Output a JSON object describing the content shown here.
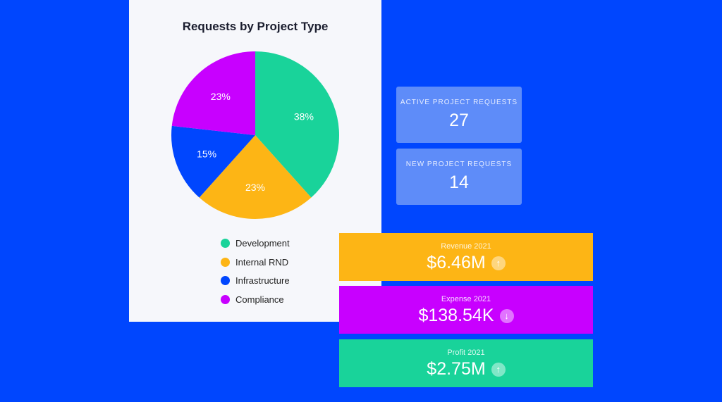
{
  "chart_data": {
    "type": "pie",
    "title": "Requests by Project Type",
    "categories": [
      "Development",
      "Internal RND",
      "Infrastructure",
      "Compliance"
    ],
    "values": [
      38,
      23,
      15,
      23
    ],
    "labels": [
      "38%",
      "23%",
      "15%",
      "23%"
    ],
    "colors": [
      "#19D39A",
      "#FDB515",
      "#0046FE",
      "#C800FF"
    ],
    "legend": "bottom"
  },
  "cards": [
    {
      "label": "ACTIVE PROJECT REQUESTS",
      "value": "27"
    },
    {
      "label": "NEW PROJECT REQUESTS",
      "value": "14"
    }
  ],
  "kpis": [
    {
      "label": "Revenue 2021",
      "value": "$6.46M",
      "trend": "up",
      "arrow": "↑",
      "color": "#FDB515"
    },
    {
      "label": "Expense 2021",
      "value": "$138.54K",
      "trend": "down",
      "arrow": "↓",
      "color": "#C800FF"
    },
    {
      "label": "Profit 2021",
      "value": "$2.75M",
      "trend": "up",
      "arrow": "↑",
      "color": "#19D39A"
    }
  ]
}
